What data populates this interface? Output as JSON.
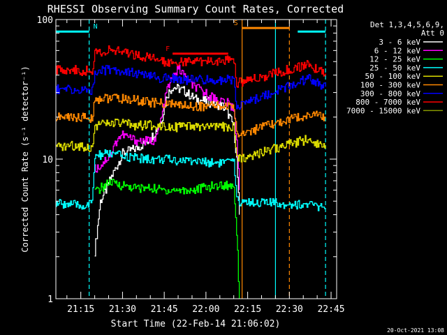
{
  "chart_data": {
    "type": "line",
    "title": "RHESSI Observing Summary Count Rates, Corrected",
    "xlabel": "Start Time (22-Feb-14 21:06:02)",
    "ylabel": "Corrected Count Rate (s⁻¹ detector⁻¹)",
    "y_scale": "log",
    "ylim": [
      1,
      100
    ],
    "xlim": [
      "21:06:02",
      "22:47:00"
    ],
    "x_ticks": [
      "21:15",
      "21:30",
      "21:45",
      "22:00",
      "22:15",
      "22:30",
      "22:45"
    ],
    "y_ticks": [
      "1",
      "10",
      "100"
    ],
    "legend": {
      "position": "right",
      "header_line1": "Det 1,3,4,5,6,9,",
      "header_line2": "Att 0"
    },
    "series": [
      {
        "name": "3 - 6 keV",
        "color": "#ffffff",
        "x": [
          "21:06",
          "21:20",
          "21:22",
          "21:24",
          "21:26",
          "21:28",
          "21:30",
          "21:35",
          "21:38",
          "21:40",
          "21:42",
          "21:44",
          "21:46",
          "21:48",
          "21:52",
          "21:56",
          "22:00",
          "22:06",
          "22:08",
          "22:10",
          "22:11",
          "22:12",
          "22:13",
          "22:30",
          "22:37",
          "22:40"
        ],
        "y": [
          null,
          2.2,
          5.0,
          6.0,
          7.5,
          9.0,
          11,
          12,
          13,
          14,
          16,
          19,
          29,
          33,
          31,
          27,
          26,
          24,
          21,
          17,
          10,
          4,
          null,
          null,
          null,
          null
        ]
      },
      {
        "name": "6 - 12 keV",
        "color": "#ff00ff",
        "x": [
          "21:20",
          "21:22",
          "21:24",
          "21:26",
          "21:28",
          "21:30",
          "21:33",
          "21:36",
          "21:40",
          "21:42",
          "21:44",
          "21:46",
          "21:48",
          "21:50",
          "21:52",
          "21:54",
          "21:58",
          "22:02",
          "22:06",
          "22:08",
          "22:10",
          "22:11",
          "22:12"
        ],
        "y": [
          8.5,
          9.0,
          10,
          11,
          14,
          15,
          14,
          13.5,
          13.5,
          14,
          20,
          32,
          38,
          45,
          40,
          35,
          31,
          28,
          26,
          25,
          23,
          14,
          6
        ]
      },
      {
        "name": "12 - 25 keV",
        "color": "#00ff00",
        "x": [
          "21:06",
          "21:19",
          "21:20",
          "21:25",
          "21:30",
          "21:35",
          "21:40",
          "21:45",
          "21:50",
          "21:55",
          "22:00",
          "22:05",
          "22:10",
          "22:11",
          "22:12"
        ],
        "y": [
          null,
          null,
          5.8,
          6.8,
          6.5,
          6.2,
          6.2,
          6.0,
          6.0,
          6.0,
          6.3,
          6.5,
          6.5,
          3.0,
          1.0
        ]
      },
      {
        "name": "25 - 50 keV",
        "color": "#00ffff",
        "x": [
          "21:06",
          "21:10",
          "21:15",
          "21:19",
          "21:20",
          "21:25",
          "21:30",
          "21:35",
          "21:40",
          "21:45",
          "21:50",
          "21:55",
          "22:00",
          "22:05",
          "22:10",
          "22:11",
          "22:37",
          "22:40",
          "22:43"
        ],
        "y": [
          4.8,
          4.8,
          4.6,
          4.8,
          10.5,
          11,
          10.5,
          10.2,
          10,
          10,
          9.8,
          9.8,
          9.5,
          9.5,
          9.5,
          5.0,
          4.7,
          4.6,
          4.4
        ]
      },
      {
        "name": "50 - 100 keV",
        "color": "#dddd00",
        "x": [
          "21:06",
          "21:10",
          "21:15",
          "21:19",
          "21:20",
          "21:25",
          "21:30",
          "21:35",
          "21:40",
          "21:45",
          "21:50",
          "21:55",
          "22:00",
          "22:05",
          "22:10",
          "22:11",
          "22:37",
          "22:40",
          "22:43"
        ],
        "y": [
          12,
          12.5,
          12.5,
          12,
          17.5,
          18,
          18,
          17.5,
          17.5,
          17.5,
          17,
          17,
          17,
          17,
          17,
          10,
          14,
          13,
          12.5
        ]
      },
      {
        "name": "100 - 300 keV",
        "color": "#ff8800",
        "x": [
          "21:06",
          "21:10",
          "21:15",
          "21:19",
          "21:20",
          "21:25",
          "21:30",
          "21:35",
          "21:40",
          "21:45",
          "21:50",
          "21:55",
          "22:00",
          "22:05",
          "22:10",
          "22:11",
          "22:37",
          "22:40",
          "22:43"
        ],
        "y": [
          20,
          20,
          20,
          19.5,
          27,
          27.5,
          27,
          26.5,
          25.5,
          25,
          24.5,
          24,
          24,
          24,
          24,
          15,
          21,
          20.5,
          20
        ]
      },
      {
        "name": "300 - 800 keV",
        "color": "#0000ff",
        "x": [
          "21:06",
          "21:10",
          "21:15",
          "21:19",
          "21:20",
          "21:25",
          "21:30",
          "21:35",
          "21:40",
          "21:45",
          "21:50",
          "21:55",
          "22:00",
          "22:05",
          "22:10",
          "22:11",
          "22:37",
          "22:40",
          "22:43"
        ],
        "y": [
          32,
          31.5,
          31,
          31,
          42,
          44,
          43,
          41,
          39,
          38,
          37.5,
          37,
          37,
          37,
          37,
          24,
          38,
          35,
          33
        ]
      },
      {
        "name": "800 - 7000 keV",
        "color": "#ff0000",
        "x": [
          "21:06",
          "21:10",
          "21:15",
          "21:19",
          "21:20",
          "21:25",
          "21:30",
          "21:35",
          "21:40",
          "21:45",
          "21:50",
          "21:55",
          "22:00",
          "22:05",
          "22:10",
          "22:11",
          "22:37",
          "22:40",
          "22:43"
        ],
        "y": [
          44,
          44,
          43,
          43,
          58,
          60,
          59,
          56,
          53,
          50,
          50,
          50,
          50,
          51,
          53,
          35,
          48,
          44,
          41
        ]
      },
      {
        "name": "7000 - 15000 keV",
        "color": "#889900",
        "x": [],
        "y": []
      }
    ],
    "flag_bars": [
      {
        "label": "N",
        "color": "#00ffff",
        "y": 82,
        "segments": [
          [
            "21:06",
            "21:18"
          ],
          [
            "22:33",
            "22:43"
          ]
        ]
      },
      {
        "label": "F",
        "color": "#ff0000",
        "y": 57,
        "segments": [
          [
            "21:48",
            "22:08"
          ]
        ]
      },
      {
        "label": "S",
        "color": "#ff8800",
        "y": 87,
        "segments": [
          [
            "22:13",
            "22:30"
          ]
        ]
      }
    ],
    "vertical_markers": [
      {
        "x": "21:18",
        "color": "#00ffff",
        "style": "dashed"
      },
      {
        "x": "22:13",
        "color": "#ff8800",
        "style": "solid"
      },
      {
        "x": "22:25",
        "color": "#00ffff",
        "style": "solid"
      },
      {
        "x": "22:30",
        "color": "#ff8800",
        "style": "dashed"
      },
      {
        "x": "22:43",
        "color": "#00ffff",
        "style": "dashed"
      }
    ]
  },
  "footer": {
    "timestamp": "20-Oct-2021 13:08"
  }
}
